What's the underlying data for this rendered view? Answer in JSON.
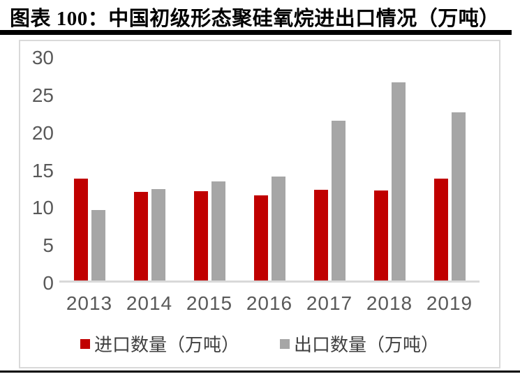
{
  "header": {
    "title": "图表 100：中国初级形态聚硅氧烷进出口情况（万吨）"
  },
  "colors": {
    "import_bar": "#c00000",
    "export_bar": "#a6a6a6",
    "axis_text": "#595959",
    "frame_border": "#d9d9d9",
    "baseline": "#d9d9d9",
    "title_text": "#000000",
    "legend_text": "#404040",
    "rule": "#000000"
  },
  "chart_data": {
    "type": "bar",
    "title": "图表 100：中国初级形态聚硅氧烷进出口情况（万吨）",
    "categories": [
      "2013",
      "2014",
      "2015",
      "2016",
      "2017",
      "2018",
      "2019"
    ],
    "series": [
      {
        "name": "进口数量（万吨）",
        "color": "#c00000",
        "values": [
          13.7,
          11.9,
          12.0,
          11.4,
          12.2,
          12.1,
          13.7
        ]
      },
      {
        "name": "出口数量（万吨）",
        "color": "#a6a6a6",
        "values": [
          9.5,
          12.3,
          13.3,
          14.0,
          21.5,
          26.6,
          22.6
        ]
      }
    ],
    "xlabel": "",
    "ylabel": "",
    "ylim": [
      0,
      30
    ],
    "yticks": [
      30,
      25,
      20,
      15,
      10,
      5,
      0
    ],
    "grid": false,
    "legend_position": "bottom"
  }
}
